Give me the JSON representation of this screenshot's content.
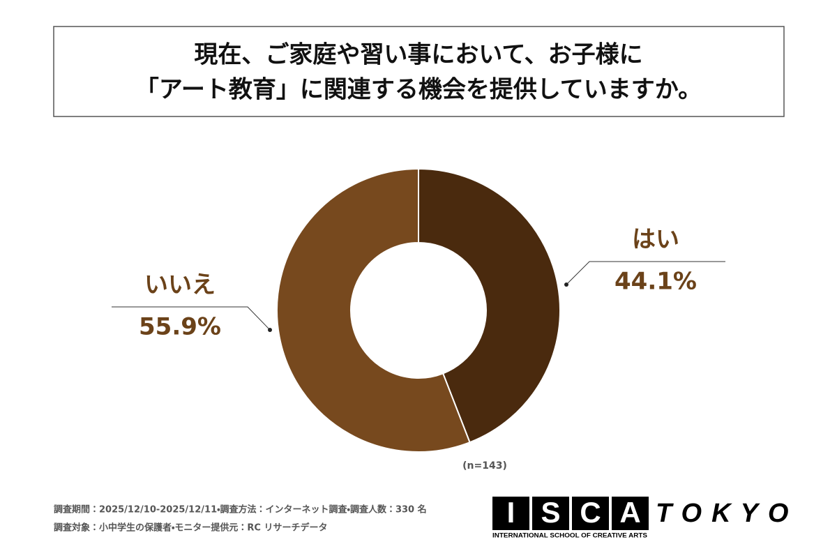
{
  "chart_data": {
    "type": "donut",
    "title": [
      "現在、ご家庭や習い事において、お子様に",
      "「アート教育」に関連する機会を提供していますか。"
    ],
    "categories": [
      "はい",
      "いいえ"
    ],
    "values": [
      44.1,
      55.9
    ],
    "value_labels": [
      "44.1%",
      "55.9%"
    ],
    "colors": [
      "#4a2a0e",
      "#77491e"
    ],
    "note": "(n=143)"
  },
  "footer": {
    "lines": [
      "調査期間：2025/12/10-2025/12/11・調査方法：インターネット調査・調査人数：330 名",
      "調査対象：小中学生の保護者・モニター提供元：RC リサーチデータ"
    ]
  },
  "logo": {
    "letters": [
      "I",
      "S",
      "C",
      "A"
    ],
    "city": "TOKYO",
    "tagline": "INTERNATIONAL SCHOOL OF CREATIVE ARTS"
  }
}
